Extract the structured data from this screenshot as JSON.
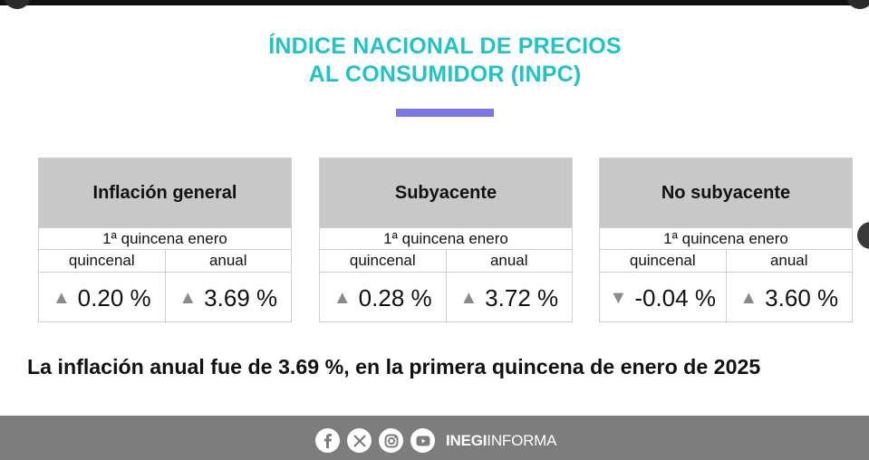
{
  "title": {
    "line1": "ÍNDICE NACIONAL DE PRECIOS",
    "line2": "AL CONSUMIDOR (INPC)"
  },
  "colors": {
    "title": "#20c3c6",
    "accent_bar": "#7b78e3",
    "header_bg": "#c8c8c8",
    "footer_bg": "#7d7d7d"
  },
  "cards": [
    {
      "title": "Inflación general",
      "period": "1ª quincena enero",
      "col1": "quincenal",
      "col2": "anual",
      "val1": {
        "arrow": "▲",
        "value": "0.20 %"
      },
      "val2": {
        "arrow": "▲",
        "value": "3.69 %"
      }
    },
    {
      "title": "Subyacente",
      "period": "1ª quincena enero",
      "col1": "quincenal",
      "col2": "anual",
      "val1": {
        "arrow": "▲",
        "value": "0.28 %"
      },
      "val2": {
        "arrow": "▲",
        "value": "3.72 %"
      }
    },
    {
      "title": "No subyacente",
      "period": "1ª quincena enero",
      "col1": "quincenal",
      "col2": "anual",
      "val1": {
        "arrow": "▼",
        "value": "-0.04 %"
      },
      "val2": {
        "arrow": "▲",
        "value": "3.60 %"
      }
    }
  ],
  "summary": "La inflación anual fue de 3.69 %, en la primera quincena de enero de 2025",
  "footer": {
    "icons": [
      "facebook-icon",
      "x-icon",
      "instagram-icon",
      "youtube-icon"
    ],
    "brand_bold": "INEGI",
    "brand_regular": "INFORMA"
  }
}
